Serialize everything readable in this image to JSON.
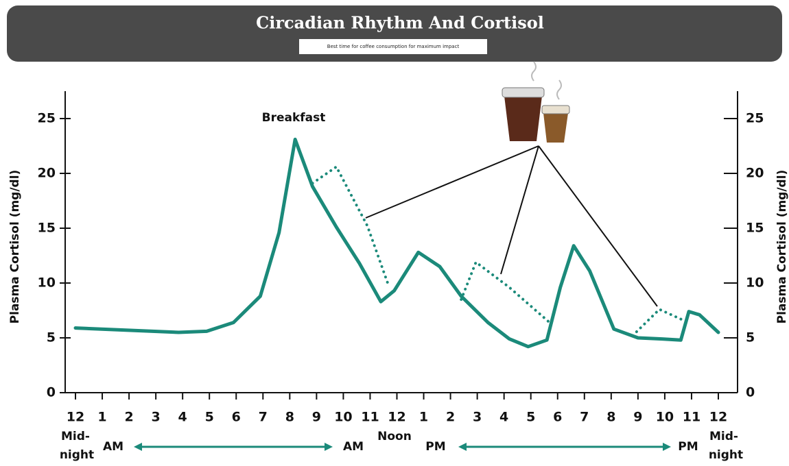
{
  "chart_data": {
    "type": "line",
    "title": "Circadian Rhythm And Cortisol",
    "subtitle": "Best time for coffee consumption for maximum impact",
    "ylabel": "Plasma Cortisol (mg/dl)",
    "y2label": "Plasma Cortisol (mg/dl)",
    "annotation": "Breakfast",
    "bottom_labels": [
      "Mid-",
      "night",
      "AM",
      "AM",
      "Noon",
      "PM",
      "PM",
      "Mid-",
      "night"
    ],
    "xlim": [
      0,
      24
    ],
    "xticks": [
      {
        "value": 0,
        "label": "12"
      },
      1,
      2,
      3,
      4,
      5,
      6,
      7,
      8,
      9,
      10,
      11,
      {
        "value": 12,
        "label": "12"
      },
      {
        "value": 13,
        "label": "1"
      },
      {
        "value": 14,
        "label": "2"
      },
      {
        "value": 15,
        "label": "3"
      },
      {
        "value": 16,
        "label": "4"
      },
      {
        "value": 17,
        "label": "5"
      },
      {
        "value": 18,
        "label": "6"
      },
      {
        "value": 19,
        "label": "7"
      },
      {
        "value": 20,
        "label": "8"
      },
      {
        "value": 21,
        "label": "9"
      },
      {
        "value": 22,
        "label": "10"
      },
      {
        "value": 23,
        "label": "11"
      },
      {
        "value": 24,
        "label": "12"
      }
    ],
    "ylim": [
      0,
      27.5
    ],
    "yticks": [
      0,
      5,
      10,
      15,
      20,
      25
    ],
    "y2lim": [
      0,
      27.5
    ],
    "y2ticks": [
      0,
      5,
      10,
      15,
      20,
      25
    ],
    "series": [
      {
        "color": "#1b8a7a",
        "style": "solid",
        "x": [
          0,
          3.85,
          4.9,
          5.9,
          6.9,
          7.6,
          8.2,
          8.85,
          9.74,
          10.6,
          11.4,
          11.9,
          12.8,
          13.6,
          14.4,
          15.4,
          16.2,
          16.9,
          17.6,
          18.1,
          18.6,
          19.2,
          20.1,
          21.0,
          21.9,
          22.6,
          22.9,
          23.3,
          24
        ],
        "values": [
          5.9,
          5.5,
          5.6,
          6.4,
          8.8,
          14.6,
          23.1,
          18.8,
          15.1,
          11.8,
          8.3,
          9.3,
          12.8,
          11.5,
          8.8,
          6.4,
          4.9,
          4.2,
          4.8,
          9.6,
          13.4,
          11.1,
          5.8,
          5.0,
          4.9,
          4.8,
          7.4,
          7.1,
          5.5
        ]
      },
      {
        "color": "#1b8a7a",
        "style": "dotted",
        "x": [
          8.85,
          9.74,
          10.9,
          11.7,
          13.0,
          14.4,
          14.95,
          16.2,
          17.7,
          19.5,
          20.8,
          21.8,
          22.7
        ],
        "values": [
          19.1,
          20.6,
          15.2,
          9.7,
          null,
          8.5,
          11.9,
          9.6,
          6.4,
          null,
          5.2,
          7.6,
          6.6
        ]
      }
    ]
  }
}
